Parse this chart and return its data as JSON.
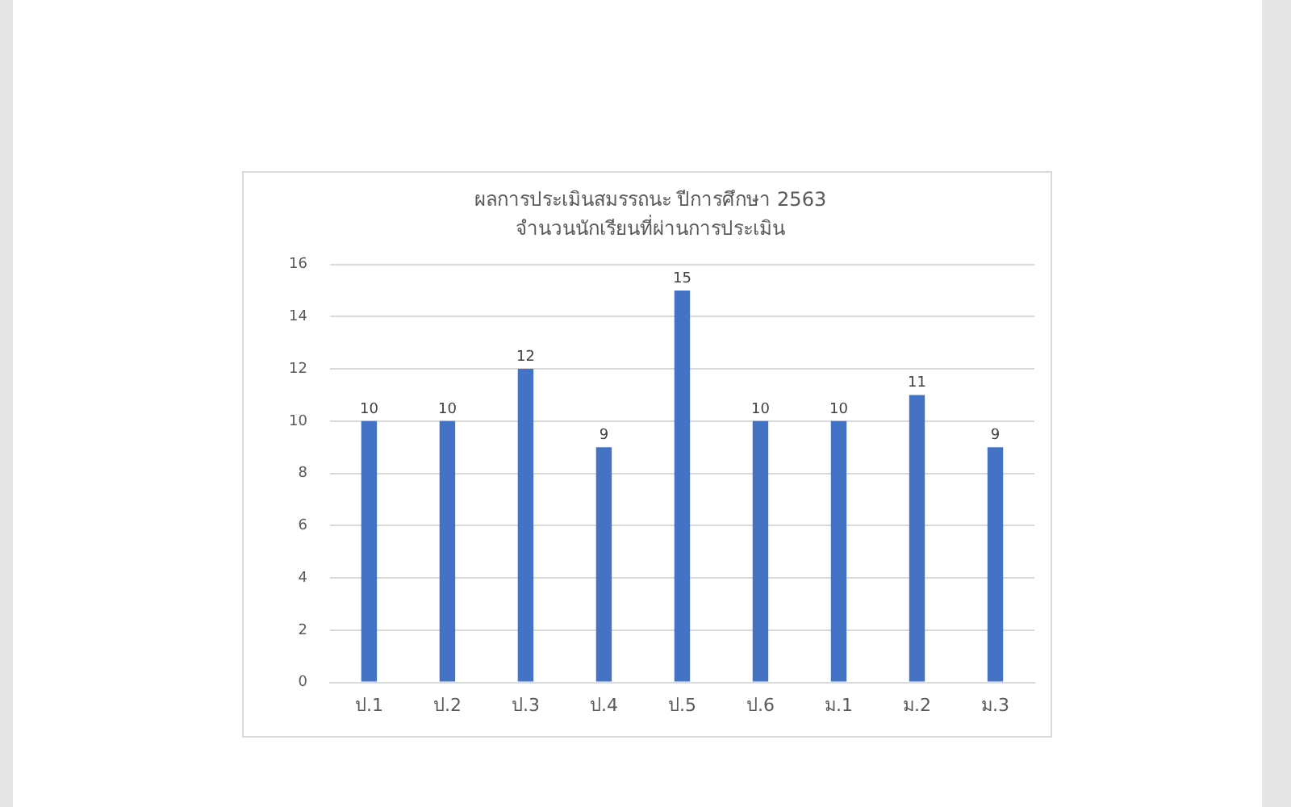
{
  "chart_data": {
    "type": "bar",
    "title": "ผลการประเมินสมรรถนะ ปีการศึกษา 2563",
    "subtitle": "จำนวนนักเรียนที่ผ่านการประเมิน",
    "categories": [
      "ป.1",
      "ป.2",
      "ป.3",
      "ป.4",
      "ป.5",
      "ป.6",
      "ม.1",
      "ม.2",
      "ม.3"
    ],
    "values": [
      10,
      10,
      12,
      9,
      15,
      10,
      10,
      11,
      9
    ],
    "color": "#4472c4",
    "ylim": [
      0,
      16
    ],
    "yticks": [
      0,
      2,
      4,
      6,
      8,
      10,
      12,
      14,
      16
    ],
    "grid": "y",
    "data_labels": true,
    "legend": false
  }
}
